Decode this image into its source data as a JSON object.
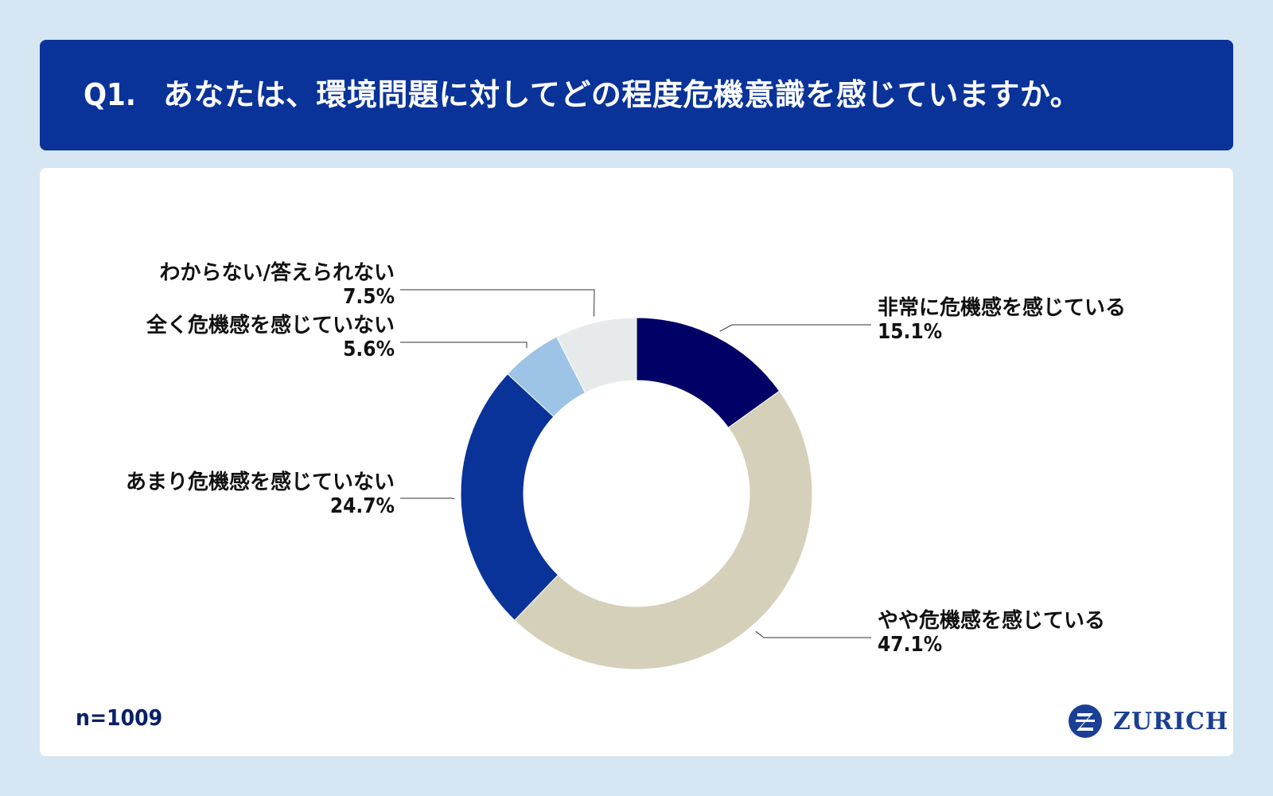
{
  "header": {
    "question_number": "Q1.",
    "question_text": "あなたは、環境問題に対してどの程度危機意識を感じていますか。"
  },
  "sample_size": "n=1009",
  "logo": {
    "text": "ZURICH",
    "mark_letter": "Z"
  },
  "chart_data": {
    "type": "pie",
    "donut": true,
    "title": "",
    "slices": [
      {
        "label": "非常に危機感を感じている",
        "value": 15.1,
        "value_label": "15.1%",
        "color": "#000066"
      },
      {
        "label": "やや危機感を感じている",
        "value": 47.1,
        "value_label": "47.1%",
        "color": "#d5d0b9"
      },
      {
        "label": "あまり危機感を感じていない",
        "value": 24.7,
        "value_label": "24.7%",
        "color": "#0a3399"
      },
      {
        "label": "全く危機感を感じていない",
        "value": 5.6,
        "value_label": "5.6%",
        "color": "#9dc3e6"
      },
      {
        "label": "わからない/答えられない",
        "value": 7.5,
        "value_label": "7.5%",
        "color": "#e6eaea"
      }
    ],
    "start_angle": "12 o'clock",
    "direction": "clockwise"
  }
}
